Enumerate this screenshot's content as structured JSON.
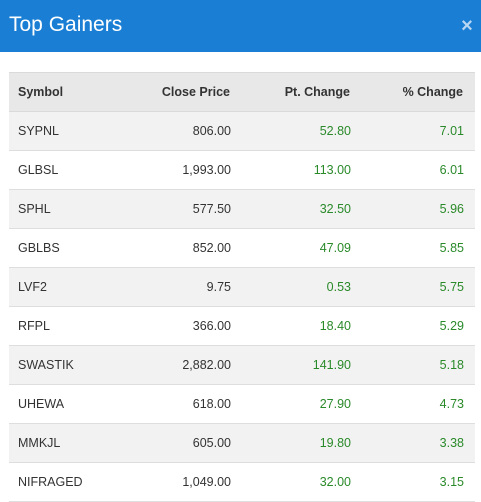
{
  "dialog": {
    "title": "Top Gainers",
    "close_symbol": "×",
    "accent_color": "#1a7fd4",
    "positive_color": "#2a8a2a"
  },
  "table": {
    "headers": [
      "Symbol",
      "Close Price",
      "Pt. Change",
      "% Change"
    ],
    "rows": [
      {
        "symbol": "SYPNL",
        "close": "806.00",
        "pt_change": "52.80",
        "pct_change": "7.01"
      },
      {
        "symbol": "GLBSL",
        "close": "1,993.00",
        "pt_change": "113.00",
        "pct_change": "6.01"
      },
      {
        "symbol": "SPHL",
        "close": "577.50",
        "pt_change": "32.50",
        "pct_change": "5.96"
      },
      {
        "symbol": "GBLBS",
        "close": "852.00",
        "pt_change": "47.09",
        "pct_change": "5.85"
      },
      {
        "symbol": "LVF2",
        "close": "9.75",
        "pt_change": "0.53",
        "pct_change": "5.75"
      },
      {
        "symbol": "RFPL",
        "close": "366.00",
        "pt_change": "18.40",
        "pct_change": "5.29"
      },
      {
        "symbol": "SWASTIK",
        "close": "2,882.00",
        "pt_change": "141.90",
        "pct_change": "5.18"
      },
      {
        "symbol": "UHEWA",
        "close": "618.00",
        "pt_change": "27.90",
        "pct_change": "4.73"
      },
      {
        "symbol": "MMKJL",
        "close": "605.00",
        "pt_change": "19.80",
        "pct_change": "3.38"
      },
      {
        "symbol": "NIFRAGED",
        "close": "1,049.00",
        "pt_change": "32.00",
        "pct_change": "3.15"
      }
    ]
  }
}
